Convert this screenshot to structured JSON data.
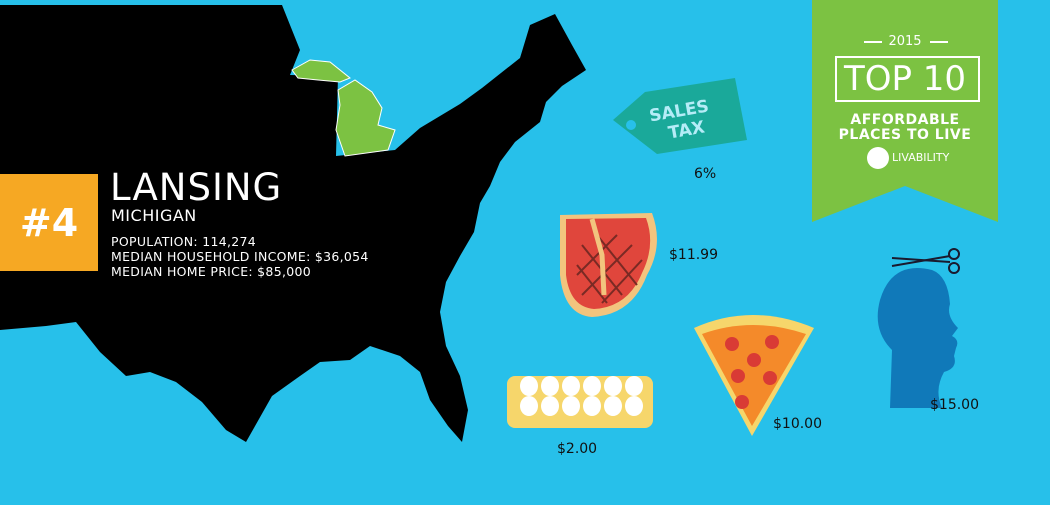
{
  "rank": "#4",
  "city": "LANSING",
  "state": "MICHIGAN",
  "stats": {
    "population": "POPULATION: 114,274",
    "income": "MEDIAN HOUSEHOLD INCOME: $36,054",
    "home_price": "MEDIAN HOME PRICE: $85,000"
  },
  "banner": {
    "year": "2015",
    "title": "TOP 10",
    "line1": "AFFORDABLE",
    "line2": "PLACES TO LIVE",
    "brand": "LIVABILITY",
    "color": "#7cc242"
  },
  "items": {
    "sales_tax": {
      "label": "SALES TAX",
      "value": "6%"
    },
    "steak": {
      "value": "$11.99"
    },
    "eggs": {
      "value": "$2.00"
    },
    "pizza": {
      "value": "$10.00"
    },
    "haircut": {
      "value": "$15.00"
    }
  },
  "colors": {
    "background": "#27c0ea",
    "map": "#000000",
    "michigan": "#7cc242",
    "rank_box": "#f6a823"
  }
}
